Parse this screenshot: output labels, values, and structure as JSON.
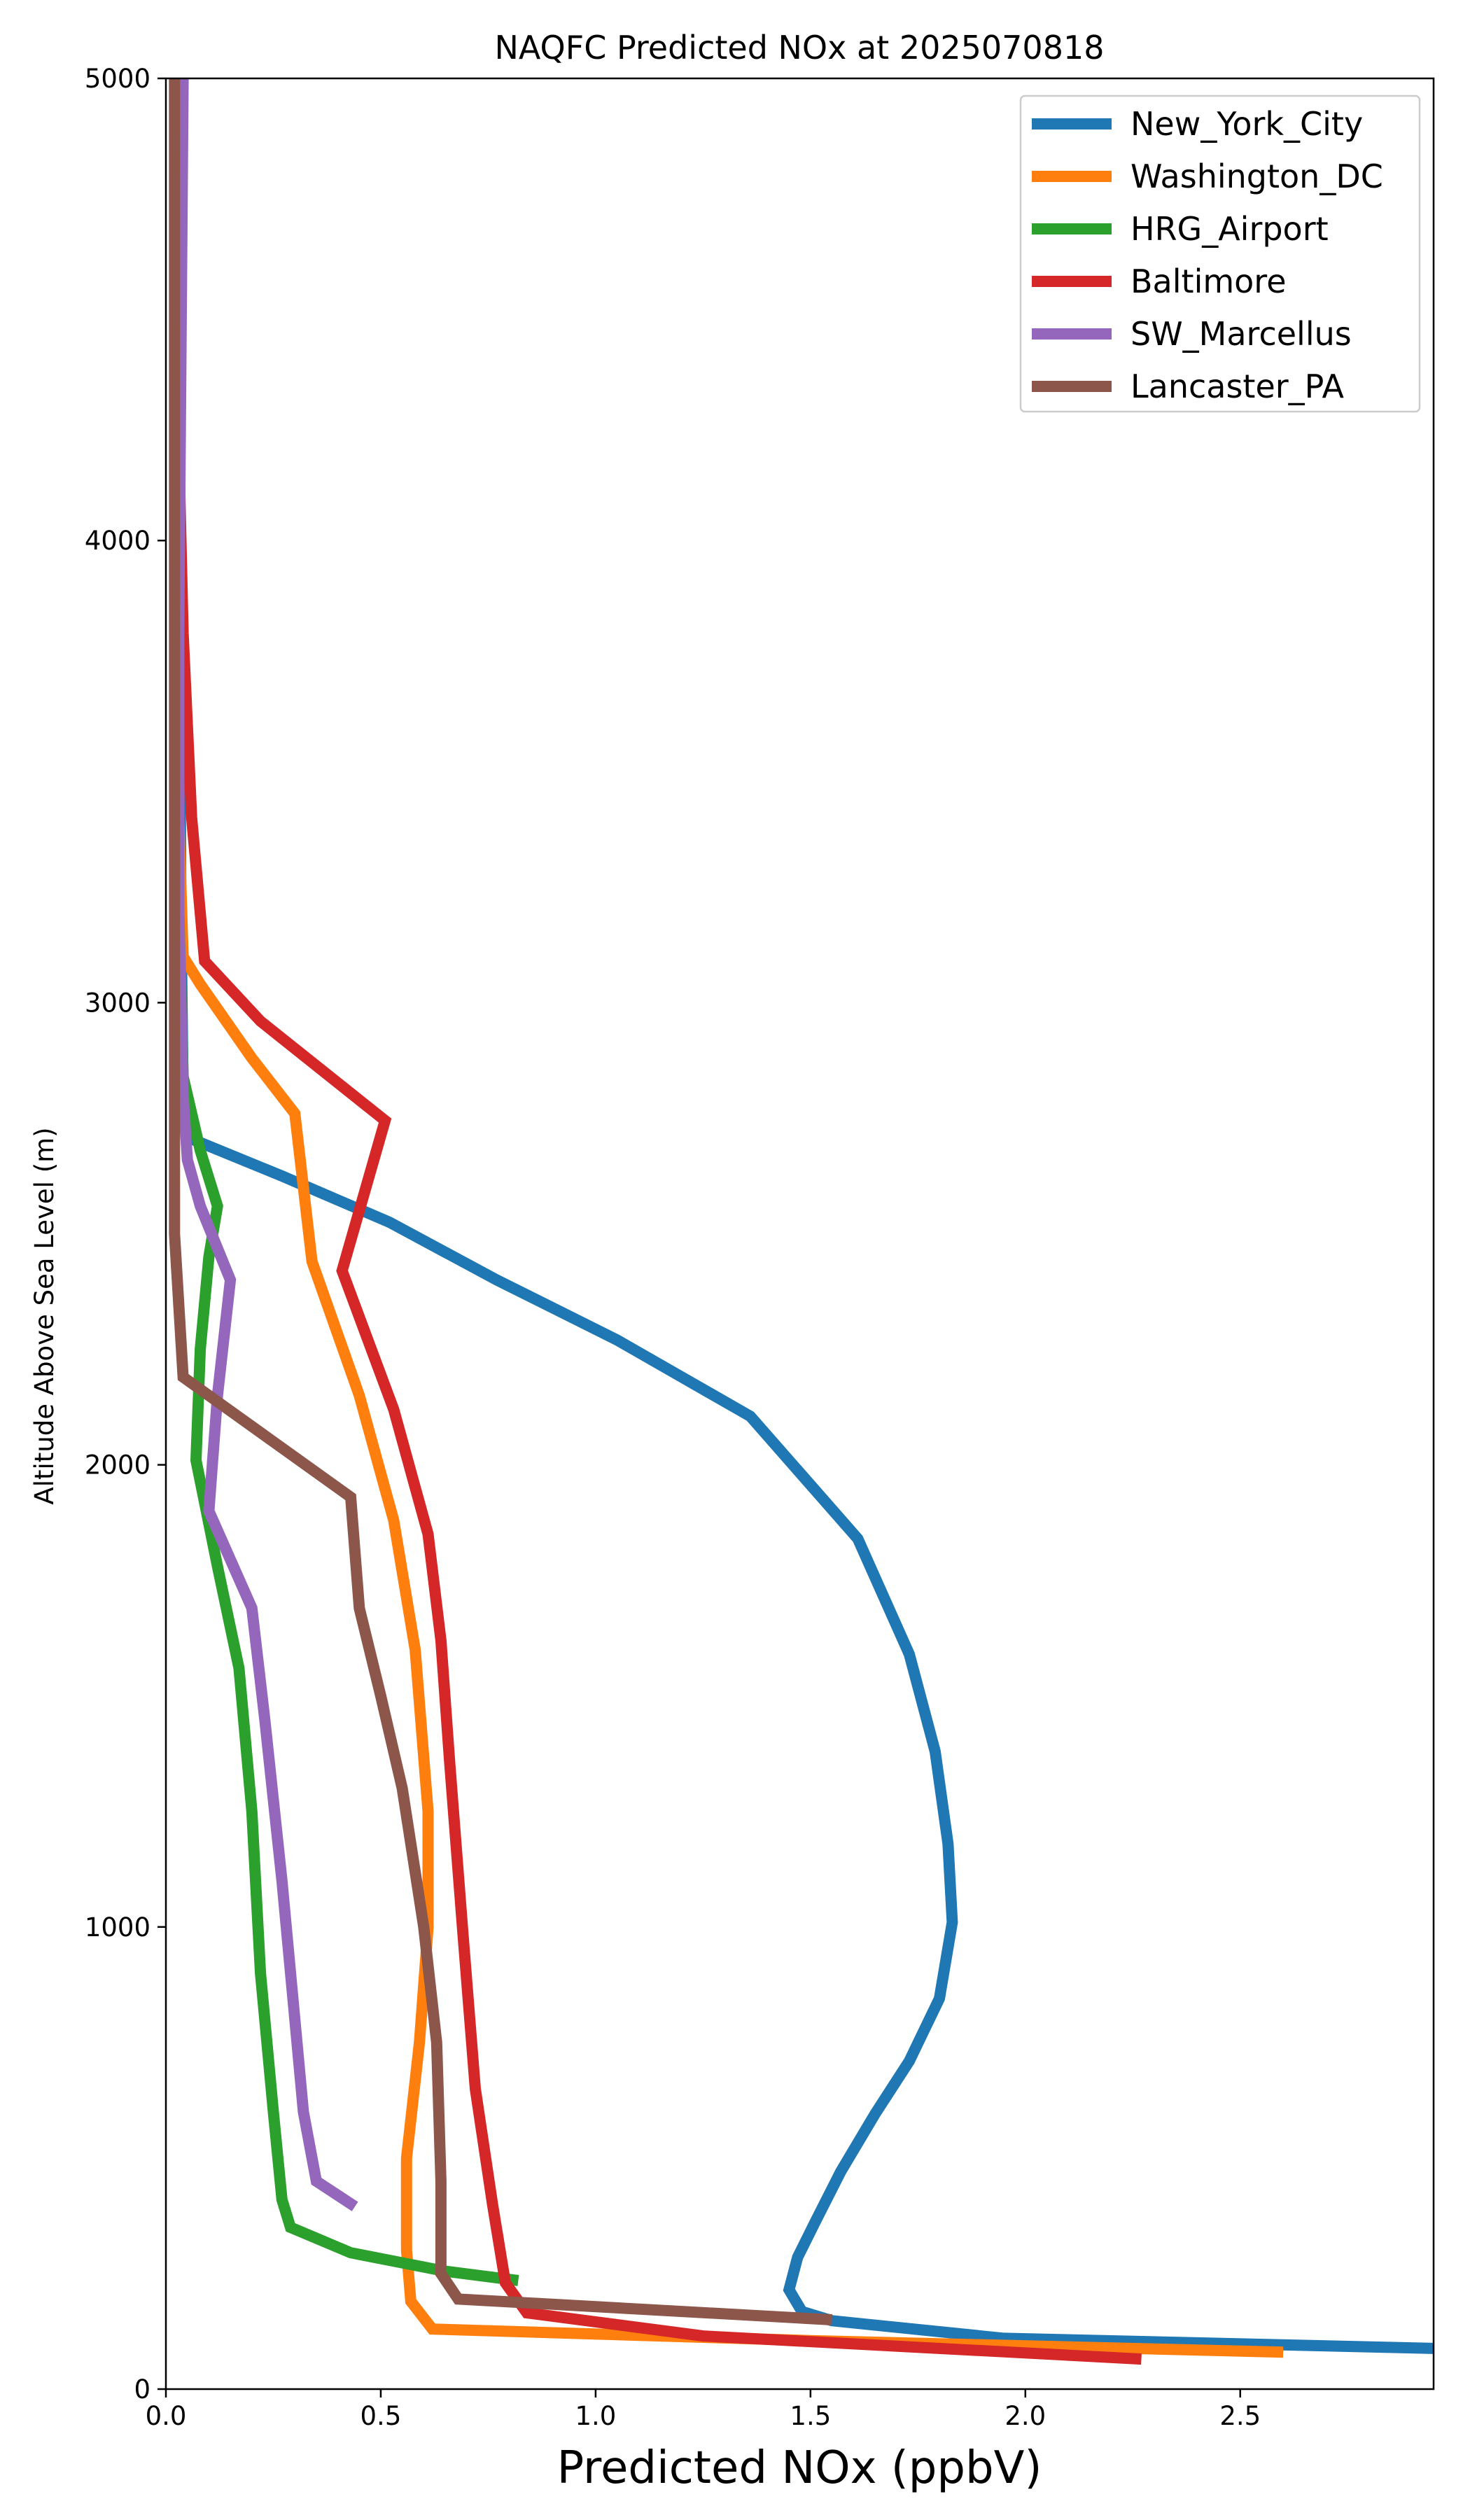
{
  "chart_data": {
    "type": "line",
    "title": "NAQFC Predicted NOx at 2025070818",
    "xlabel": "Predicted NOx (ppbV)",
    "ylabel": "Altitude Above Sea Level (m)",
    "xlim": [
      0,
      2.95
    ],
    "ylim": [
      0,
      5000
    ],
    "x_ticks": [
      0.0,
      0.5,
      1.0,
      1.5,
      2.0,
      2.5
    ],
    "x_tick_labels": [
      "0.0",
      "0.5",
      "1.0",
      "1.5",
      "2.0",
      "2.5"
    ],
    "y_ticks": [
      0,
      1000,
      2000,
      3000,
      4000,
      5000
    ],
    "y_tick_labels": [
      "0",
      "1000",
      "2000",
      "3000",
      "4000",
      "5000"
    ],
    "grid": false,
    "legend_position": "top-right",
    "series": [
      {
        "name": "New_York_City",
        "color": "#1f77b4",
        "points": [
          [
            2.95,
            88
          ],
          [
            1.95,
            110
          ],
          [
            1.55,
            148
          ],
          [
            1.48,
            168
          ],
          [
            1.45,
            215
          ],
          [
            1.47,
            285
          ],
          [
            1.51,
            360
          ],
          [
            1.57,
            470
          ],
          [
            1.65,
            595
          ],
          [
            1.73,
            710
          ],
          [
            1.8,
            845
          ],
          [
            1.83,
            1010
          ],
          [
            1.82,
            1180
          ],
          [
            1.79,
            1380
          ],
          [
            1.73,
            1590
          ],
          [
            1.61,
            1840
          ],
          [
            1.36,
            2105
          ],
          [
            1.05,
            2270
          ],
          [
            0.77,
            2400
          ],
          [
            0.52,
            2525
          ],
          [
            0.27,
            2625
          ],
          [
            0.06,
            2705
          ],
          [
            0.04,
            2800
          ],
          [
            0.035,
            3200
          ],
          [
            0.03,
            4000
          ],
          [
            0.03,
            5000
          ]
        ]
      },
      {
        "name": "Washington_DC",
        "color": "#ff7f0e",
        "points": [
          [
            2.6,
            80
          ],
          [
            1.5,
            105
          ],
          [
            0.62,
            130
          ],
          [
            0.57,
            190
          ],
          [
            0.56,
            300
          ],
          [
            0.56,
            500
          ],
          [
            0.59,
            750
          ],
          [
            0.61,
            1000
          ],
          [
            0.61,
            1250
          ],
          [
            0.58,
            1600
          ],
          [
            0.53,
            1880
          ],
          [
            0.45,
            2150
          ],
          [
            0.34,
            2440
          ],
          [
            0.3,
            2760
          ],
          [
            0.2,
            2880
          ],
          [
            0.08,
            3040
          ],
          [
            0.04,
            3100
          ],
          [
            0.03,
            3400
          ],
          [
            0.03,
            4000
          ],
          [
            0.03,
            5000
          ]
        ]
      },
      {
        "name": "HRG_Airport",
        "color": "#2ca02c",
        "points": [
          [
            0.82,
            235
          ],
          [
            0.65,
            255
          ],
          [
            0.43,
            295
          ],
          [
            0.29,
            350
          ],
          [
            0.27,
            410
          ],
          [
            0.25,
            600
          ],
          [
            0.22,
            900
          ],
          [
            0.2,
            1250
          ],
          [
            0.17,
            1560
          ],
          [
            0.12,
            1780
          ],
          [
            0.07,
            2010
          ],
          [
            0.08,
            2250
          ],
          [
            0.1,
            2450
          ],
          [
            0.12,
            2560
          ],
          [
            0.08,
            2680
          ],
          [
            0.04,
            2840
          ],
          [
            0.03,
            3200
          ],
          [
            0.03,
            4000
          ],
          [
            0.03,
            5000
          ]
        ]
      },
      {
        "name": "Baltimore",
        "color": "#d62728",
        "points": [
          [
            2.27,
            65
          ],
          [
            1.25,
            115
          ],
          [
            0.84,
            165
          ],
          [
            0.79,
            230
          ],
          [
            0.76,
            400
          ],
          [
            0.72,
            650
          ],
          [
            0.69,
            1000
          ],
          [
            0.66,
            1360
          ],
          [
            0.64,
            1620
          ],
          [
            0.61,
            1850
          ],
          [
            0.53,
            2120
          ],
          [
            0.41,
            2420
          ],
          [
            0.51,
            2745
          ],
          [
            0.22,
            2960
          ],
          [
            0.09,
            3090
          ],
          [
            0.06,
            3400
          ],
          [
            0.04,
            3800
          ],
          [
            0.03,
            4200
          ],
          [
            0.03,
            5000
          ]
        ]
      },
      {
        "name": "SW_Marcellus",
        "color": "#9467bd",
        "points": [
          [
            0.44,
            395
          ],
          [
            0.35,
            450
          ],
          [
            0.32,
            600
          ],
          [
            0.3,
            800
          ],
          [
            0.27,
            1100
          ],
          [
            0.23,
            1450
          ],
          [
            0.2,
            1690
          ],
          [
            0.1,
            1900
          ],
          [
            0.12,
            2150
          ],
          [
            0.15,
            2400
          ],
          [
            0.08,
            2560
          ],
          [
            0.05,
            2660
          ],
          [
            0.04,
            2800
          ],
          [
            0.03,
            3200
          ],
          [
            0.03,
            3800
          ],
          [
            0.035,
            4400
          ],
          [
            0.04,
            5000
          ]
        ]
      },
      {
        "name": "Lancaster_PA",
        "color": "#8c564b",
        "points": [
          [
            1.55,
            150
          ],
          [
            0.68,
            195
          ],
          [
            0.64,
            250
          ],
          [
            0.64,
            450
          ],
          [
            0.63,
            750
          ],
          [
            0.6,
            1000
          ],
          [
            0.55,
            1300
          ],
          [
            0.5,
            1500
          ],
          [
            0.45,
            1690
          ],
          [
            0.43,
            1930
          ],
          [
            0.04,
            2190
          ],
          [
            0.02,
            2500
          ],
          [
            0.02,
            2900
          ],
          [
            0.02,
            3400
          ],
          [
            0.02,
            4000
          ],
          [
            0.02,
            5000
          ]
        ]
      }
    ]
  }
}
